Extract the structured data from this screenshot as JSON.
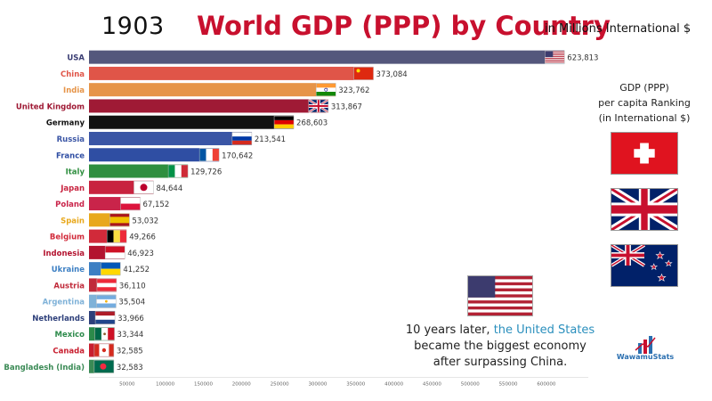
{
  "header": {
    "year": "1903",
    "title": "World GDP (PPP) by Country",
    "unit": "in Millions International $"
  },
  "chart_data": {
    "type": "bar",
    "orientation": "horizontal",
    "categories": [
      "USA",
      "China",
      "India",
      "United Kingdom",
      "Germany",
      "Russia",
      "France",
      "Italy",
      "Japan",
      "Poland",
      "Spain",
      "Belgium",
      "Indonesia",
      "Ukraine",
      "Austria",
      "Argentina",
      "Netherlands",
      "Mexico",
      "Canada",
      "Bangladesh (India)"
    ],
    "values": [
      623813,
      373084,
      323762,
      313867,
      268603,
      213541,
      170642,
      129726,
      84644,
      67152,
      53032,
      49266,
      46923,
      41252,
      36110,
      35504,
      33966,
      33344,
      32585,
      32583
    ],
    "value_labels": [
      "623,813",
      "373,084",
      "323,762",
      "313,867",
      "268,603",
      "213,541",
      "170,642",
      "129,726",
      "84,644",
      "67,152",
      "53,032",
      "49,266",
      "46,923",
      "41,252",
      "36,110",
      "35,504",
      "33,966",
      "33,344",
      "32,585",
      "32,583"
    ],
    "bar_colors": [
      "#54577c",
      "#e05548",
      "#e69448",
      "#9f1a35",
      "#111111",
      "#3a55a5",
      "#2f4ea3",
      "#2f8f3f",
      "#c8233f",
      "#c9244a",
      "#e8a81c",
      "#d12a3a",
      "#b3132f",
      "#3c7fc3",
      "#c02a3a",
      "#7fb2d8",
      "#2d3f7a",
      "#2c8a4a",
      "#c81e2e",
      "#3a8a55"
    ],
    "label_colors": [
      "#3a3d73",
      "#e05548",
      "#e69448",
      "#9f1a35",
      "#111111",
      "#3a55a5",
      "#2f4ea3",
      "#2f8f3f",
      "#c8233f",
      "#c9244a",
      "#e8a81c",
      "#d12a3a",
      "#b3132f",
      "#3c7fc3",
      "#c02a3a",
      "#7fb2d8",
      "#2d3f7a",
      "#2c8a4a",
      "#c81e2e",
      "#3a8a55"
    ],
    "flags": [
      "usa-flag",
      "china-flag",
      "india-flag",
      "uk-flag",
      "germany-flag",
      "russia-flag",
      "france-flag",
      "italy-flag",
      "japan-flag",
      "poland-flag",
      "spain-flag",
      "belgium-flag",
      "indonesia-flag",
      "ukraine-flag",
      "austria-flag",
      "argentina-flag",
      "netherlands-flag",
      "mexico-flag",
      "canada-flag",
      "bangladesh-flag"
    ],
    "x_ticks": [
      50000,
      100000,
      150000,
      200000,
      250000,
      300000,
      350000,
      400000,
      450000,
      500000,
      550000,
      600000
    ],
    "x_tick_labels": [
      "50000",
      "100000",
      "150000",
      "200000",
      "250000",
      "300000",
      "350000",
      "400000",
      "450000",
      "500000",
      "550000",
      "600000"
    ],
    "xlim": [
      0,
      655000
    ],
    "grid": false,
    "legend": "none"
  },
  "side_panel": {
    "title_line1": "GDP (PPP)",
    "title_line2": "per capita Ranking",
    "title_line3": "(in International $)",
    "flags": [
      "switzerland-flag",
      "uk-flag",
      "new-zealand-flag"
    ]
  },
  "note": {
    "flag": "usa-flag",
    "line1_prefix": "10 years later,",
    "line1_highlight": "the United States",
    "line2": "became the biggest economy",
    "line3": "after surpassing China.",
    "highlight_color": "#2a8fbd"
  },
  "logo": {
    "text": "WawamuStats"
  }
}
